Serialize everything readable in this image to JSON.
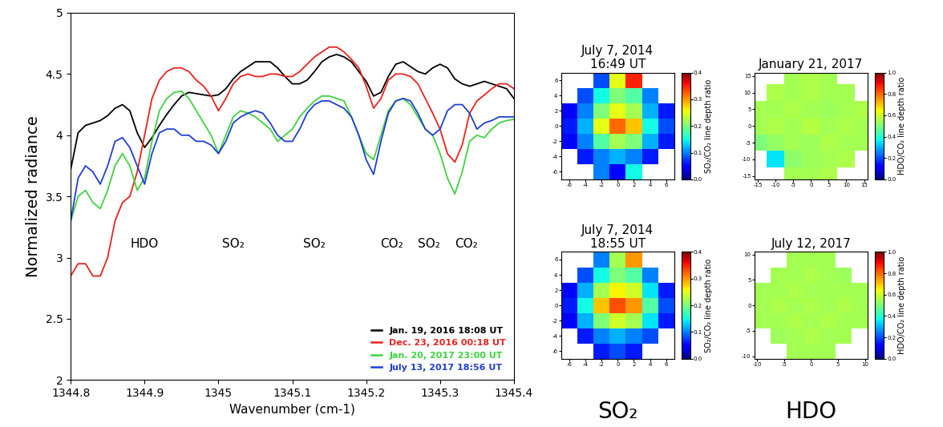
{
  "chart_data": [
    {
      "type": "line",
      "xlabel": "Wavenumber (cm-1)",
      "ylabel": "Normalized radiance",
      "xlim": [
        1344.8,
        1345.4
      ],
      "ylim": [
        2,
        5
      ],
      "xticks": [
        1344.8,
        1344.9,
        1345,
        1345.1,
        1345.2,
        1345.3,
        1345.4
      ],
      "yticks": [
        2,
        2.5,
        3,
        3.5,
        4,
        4.5,
        5
      ],
      "legend": "lower right",
      "annotations": [
        {
          "text": "HDO",
          "x": 1344.9
        },
        {
          "text": "SO₂",
          "x": 1345.02
        },
        {
          "text": "SO₂",
          "x": 1345.13
        },
        {
          "text": "CO₂",
          "x": 1345.235
        },
        {
          "text": "SO₂",
          "x": 1345.285
        },
        {
          "text": "CO₂",
          "x": 1345.335
        }
      ],
      "x": [
        1344.8,
        1344.81,
        1344.82,
        1344.83,
        1344.84,
        1344.85,
        1344.86,
        1344.87,
        1344.88,
        1344.89,
        1344.9,
        1344.91,
        1344.92,
        1344.93,
        1344.94,
        1344.95,
        1344.96,
        1344.97,
        1344.98,
        1344.99,
        1345,
        1345.01,
        1345.02,
        1345.03,
        1345.04,
        1345.05,
        1345.06,
        1345.07,
        1345.08,
        1345.09,
        1345.1,
        1345.11,
        1345.12,
        1345.13,
        1345.14,
        1345.15,
        1345.16,
        1345.17,
        1345.18,
        1345.19,
        1345.2,
        1345.21,
        1345.22,
        1345.23,
        1345.24,
        1345.25,
        1345.26,
        1345.27,
        1345.28,
        1345.29,
        1345.3,
        1345.31,
        1345.32,
        1345.33,
        1345.34,
        1345.35,
        1345.36,
        1345.37,
        1345.38,
        1345.39,
        1345.4
      ],
      "series": [
        {
          "name": "Jan. 19, 2016 18:08 UT",
          "color": "#000000",
          "values": [
            3.72,
            4.02,
            4.08,
            4.1,
            4.12,
            4.16,
            4.22,
            4.25,
            4.2,
            4.02,
            3.9,
            3.98,
            4.08,
            4.17,
            4.25,
            4.32,
            4.35,
            4.34,
            4.33,
            4.32,
            4.33,
            4.38,
            4.46,
            4.52,
            4.56,
            4.6,
            4.6,
            4.6,
            4.55,
            4.48,
            4.42,
            4.42,
            4.45,
            4.52,
            4.6,
            4.64,
            4.66,
            4.64,
            4.6,
            4.52,
            4.44,
            4.32,
            4.35,
            4.48,
            4.58,
            4.6,
            4.56,
            4.52,
            4.5,
            4.55,
            4.58,
            4.55,
            4.46,
            4.42,
            4.4,
            4.42,
            4.44,
            4.42,
            4.4,
            4.38,
            4.3
          ]
        },
        {
          "name": "Dec. 23, 2016 00:18 UT",
          "color": "#e8231e",
          "values": [
            2.85,
            2.95,
            2.95,
            2.85,
            2.85,
            3.0,
            3.3,
            3.45,
            3.5,
            3.7,
            4.0,
            4.3,
            4.45,
            4.52,
            4.55,
            4.55,
            4.52,
            4.45,
            4.4,
            4.32,
            4.2,
            4.3,
            4.42,
            4.48,
            4.5,
            4.48,
            4.48,
            4.5,
            4.5,
            4.48,
            4.48,
            4.52,
            4.58,
            4.64,
            4.68,
            4.72,
            4.72,
            4.68,
            4.62,
            4.55,
            4.4,
            4.22,
            4.3,
            4.45,
            4.5,
            4.5,
            4.48,
            4.42,
            4.3,
            4.18,
            4.05,
            3.85,
            3.78,
            3.92,
            4.18,
            4.28,
            4.33,
            4.38,
            4.42,
            4.42,
            4.38
          ]
        },
        {
          "name": "Jan. 20, 2017 23:00 UT",
          "color": "#3fd23f",
          "values": [
            3.3,
            3.5,
            3.55,
            3.45,
            3.4,
            3.55,
            3.75,
            3.85,
            3.75,
            3.55,
            3.65,
            3.95,
            4.2,
            4.3,
            4.35,
            4.36,
            4.3,
            4.2,
            4.1,
            4.0,
            3.85,
            4.0,
            4.15,
            4.2,
            4.18,
            4.15,
            4.1,
            4.05,
            3.95,
            4.0,
            4.05,
            4.15,
            4.22,
            4.28,
            4.32,
            4.32,
            4.3,
            4.28,
            4.15,
            4.0,
            3.85,
            3.8,
            4.0,
            4.2,
            4.28,
            4.3,
            4.25,
            4.15,
            4.05,
            4.0,
            3.85,
            3.65,
            3.52,
            3.7,
            3.95,
            4.0,
            3.98,
            4.05,
            4.1,
            4.12,
            4.13
          ]
        },
        {
          "name": "July 13, 2017 18:56 UT",
          "color": "#1f3fd0",
          "values": [
            3.3,
            3.65,
            3.75,
            3.7,
            3.6,
            3.75,
            3.95,
            3.98,
            3.9,
            3.75,
            3.6,
            3.85,
            4.02,
            4.05,
            4.05,
            4.0,
            4.0,
            3.95,
            3.95,
            3.92,
            3.85,
            3.95,
            4.1,
            4.15,
            4.18,
            4.2,
            4.18,
            4.1,
            4.0,
            3.95,
            3.95,
            4.05,
            4.18,
            4.25,
            4.28,
            4.28,
            4.25,
            4.22,
            4.15,
            4.0,
            3.8,
            3.68,
            3.95,
            4.18,
            4.28,
            4.3,
            4.28,
            4.18,
            4.05,
            4.0,
            4.05,
            4.2,
            4.25,
            4.25,
            4.18,
            4.05,
            4.1,
            4.12,
            4.15,
            4.15,
            4.15
          ]
        }
      ]
    },
    {
      "type": "heatmap",
      "title": "July 7, 2014\n16:49 UT",
      "xlim": [
        -7,
        7
      ],
      "ylim": [
        -7,
        7
      ],
      "xticks": [
        -6,
        -4,
        -2,
        0,
        2,
        4,
        6
      ],
      "yticks": [
        -6,
        -4,
        -2,
        0,
        2,
        4,
        6
      ],
      "x": [
        -6,
        -4,
        -2,
        0,
        2,
        4,
        6
      ],
      "y": [
        -6,
        -4,
        -2,
        0,
        2,
        4,
        6
      ],
      "cells": [
        [
          null,
          null,
          0.1,
          0.05,
          0.15,
          null,
          null
        ],
        [
          null,
          0.06,
          0.1,
          0.12,
          0.1,
          0.06,
          null
        ],
        [
          0.05,
          0.1,
          0.18,
          0.22,
          0.2,
          0.12,
          0.06
        ],
        [
          0.06,
          0.12,
          0.25,
          0.32,
          0.28,
          0.15,
          0.08
        ],
        [
          0.05,
          0.1,
          0.2,
          0.25,
          0.22,
          0.12,
          0.06
        ],
        [
          null,
          0.08,
          0.15,
          0.2,
          0.18,
          0.1,
          null
        ],
        [
          null,
          null,
          0.08,
          0.25,
          0.35,
          null,
          null
        ]
      ],
      "colorbar": {
        "label": "SO₂/CO₂ line depth ratio",
        "range": [
          0,
          0.4
        ],
        "ticks": [
          {
            "value": 0,
            "label": "0.0"
          },
          0.1,
          0.2,
          0.3,
          0.4
        ]
      }
    },
    {
      "type": "heatmap",
      "title": "July 7, 2014\n18:55 UT",
      "xlim": [
        -7,
        7
      ],
      "ylim": [
        -7,
        7
      ],
      "xticks": [
        -6,
        -4,
        -2,
        0,
        2,
        4,
        6
      ],
      "yticks": [
        -6,
        -4,
        -2,
        0,
        2,
        4,
        6
      ],
      "x": [
        -6,
        -4,
        -2,
        0,
        2,
        4,
        6
      ],
      "y": [
        -6,
        -4,
        -2,
        0,
        2,
        4,
        6
      ],
      "cells": [
        [
          null,
          null,
          0.06,
          0.08,
          0.06,
          null,
          null
        ],
        [
          null,
          0.06,
          0.1,
          0.12,
          0.1,
          0.08,
          null
        ],
        [
          0.05,
          0.12,
          0.2,
          0.24,
          0.22,
          0.14,
          0.06
        ],
        [
          0.06,
          0.15,
          0.28,
          0.33,
          0.3,
          0.18,
          0.08
        ],
        [
          0.05,
          0.12,
          0.22,
          0.26,
          0.24,
          0.14,
          0.06
        ],
        [
          null,
          0.08,
          0.15,
          0.2,
          0.18,
          0.1,
          null
        ],
        [
          null,
          null,
          0.1,
          0.22,
          0.3,
          null,
          null
        ]
      ],
      "colorbar": {
        "label": "SO₂/CO₂ line depth ratio",
        "range": [
          0,
          0.4
        ],
        "ticks": [
          {
            "value": 0,
            "label": "0.0"
          },
          0.1,
          0.2,
          0.3,
          0.4
        ]
      }
    },
    {
      "type": "heatmap",
      "title": "January 21, 2017",
      "xlim": [
        -16,
        16
      ],
      "ylim": [
        -16,
        16
      ],
      "xticks": [
        -15,
        -10,
        -5,
        0,
        5,
        10,
        15
      ],
      "yticks": [
        -15,
        -10,
        -5,
        0,
        5,
        10,
        15
      ],
      "x": [
        -15,
        -10,
        -5,
        0,
        5,
        10,
        15
      ],
      "y": [
        -15,
        -10,
        -5,
        0,
        5,
        10,
        15
      ],
      "cells": [
        [
          null,
          null,
          0.55,
          0.55,
          0.56,
          null,
          null
        ],
        [
          null,
          0.35,
          0.52,
          0.54,
          0.55,
          0.56,
          null
        ],
        [
          0.5,
          0.53,
          0.55,
          0.54,
          0.56,
          0.55,
          0.55
        ],
        [
          0.55,
          0.56,
          0.55,
          0.57,
          0.55,
          0.56,
          0.55
        ],
        [
          0.55,
          0.55,
          0.56,
          0.55,
          0.54,
          0.55,
          0.56
        ],
        [
          null,
          0.56,
          0.55,
          0.56,
          0.55,
          0.55,
          null
        ],
        [
          null,
          null,
          0.55,
          0.56,
          0.55,
          null,
          null
        ]
      ],
      "colorbar": {
        "label": "HDO/CO₂ line depth ratio",
        "range": [
          0,
          1
        ],
        "ticks": [
          {
            "value": 0,
            "label": "0.0"
          },
          0.2,
          0.4,
          0.6,
          0.8,
          {
            "value": 1,
            "label": "1.0"
          }
        ]
      }
    },
    {
      "type": "heatmap",
      "title": "July 12, 2017",
      "xlim": [
        -10.5,
        10.5
      ],
      "ylim": [
        -10.5,
        10.5
      ],
      "xticks": [
        -10,
        -5,
        0,
        5,
        10
      ],
      "yticks": [
        -10,
        -5,
        0,
        5,
        10
      ],
      "x": [
        -9,
        -6,
        -3,
        0,
        3,
        6,
        9
      ],
      "y": [
        -9,
        -6,
        -3,
        0,
        3,
        6,
        9
      ],
      "cells": [
        [
          null,
          null,
          0.55,
          0.55,
          0.55,
          null,
          null
        ],
        [
          null,
          0.54,
          0.55,
          0.56,
          0.55,
          0.55,
          null
        ],
        [
          0.55,
          0.55,
          0.56,
          0.55,
          0.56,
          0.55,
          0.55
        ],
        [
          0.55,
          0.56,
          0.55,
          0.56,
          0.55,
          0.56,
          0.55
        ],
        [
          0.55,
          0.55,
          0.56,
          0.55,
          0.55,
          0.55,
          0.55
        ],
        [
          null,
          0.55,
          0.55,
          0.56,
          0.55,
          0.54,
          null
        ],
        [
          null,
          null,
          0.55,
          0.55,
          0.55,
          null,
          null
        ]
      ],
      "colorbar": {
        "label": "HDO/CO₂ line depth ratio",
        "range": [
          0,
          1
        ],
        "ticks": [
          {
            "value": 0,
            "label": "0.0"
          },
          0.2,
          0.4,
          0.6,
          0.8,
          {
            "value": 1,
            "label": "1.0"
          }
        ]
      }
    }
  ],
  "column_labels": [
    "SO₂",
    "HDO"
  ]
}
